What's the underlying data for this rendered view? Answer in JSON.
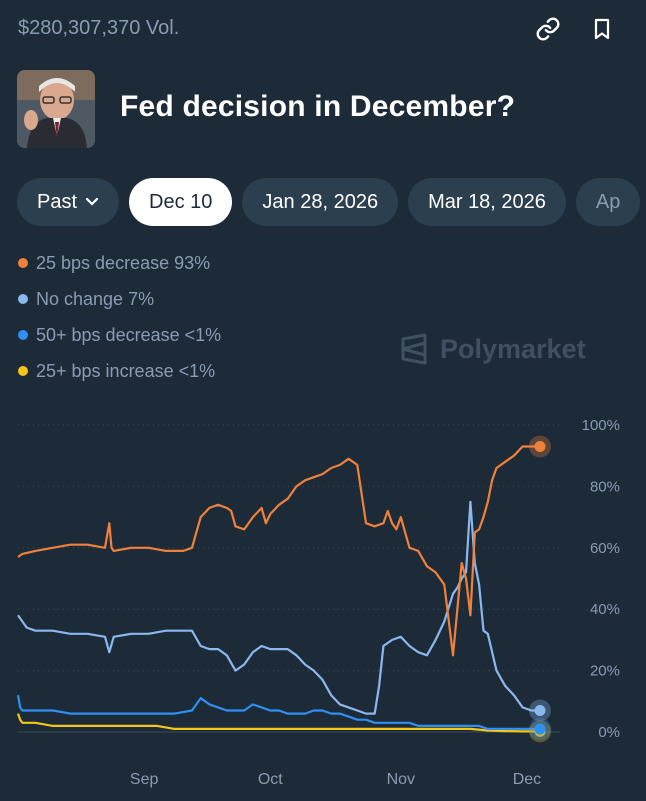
{
  "header": {
    "volume": "$280,307,370 Vol.",
    "title": "Fed decision in December?",
    "link_icon": "link-icon",
    "bookmark_icon": "bookmark-icon"
  },
  "tabs": [
    {
      "label": "Past",
      "has_chevron": true
    },
    {
      "label": "Dec 10",
      "active": true
    },
    {
      "label": "Jan 28, 2026"
    },
    {
      "label": "Mar 18, 2026"
    },
    {
      "label": "Ap"
    }
  ],
  "legend": [
    {
      "label": "25 bps decrease 93%",
      "color": "#f0813a"
    },
    {
      "label": "No change 7%",
      "color": "#8ab8ee"
    },
    {
      "label": "50+ bps decrease <1%",
      "color": "#2f8ff3"
    },
    {
      "label": "25+ bps increase <1%",
      "color": "#f5c518"
    }
  ],
  "watermark": "Polymarket",
  "chart_data": {
    "type": "line",
    "ylim": [
      0,
      100
    ],
    "x_range": [
      0,
      120
    ],
    "y_ticks": [
      {
        "v": 0,
        "label": "0%"
      },
      {
        "v": 20,
        "label": "20%"
      },
      {
        "v": 40,
        "label": "40%"
      },
      {
        "v": 60,
        "label": "60%"
      },
      {
        "v": 80,
        "label": "80%"
      },
      {
        "v": 100,
        "label": "100%"
      }
    ],
    "x_ticks": [
      {
        "v": 29,
        "label": "Sep"
      },
      {
        "v": 58,
        "label": "Oct"
      },
      {
        "v": 88,
        "label": "Nov"
      },
      {
        "v": 117,
        "label": "Dec"
      }
    ],
    "series": [
      {
        "name": "25 bps decrease",
        "color": "#f0813a",
        "x": [
          0,
          1,
          4,
          8,
          12,
          16,
          20,
          21,
          21.5,
          22,
          26,
          30,
          34,
          38,
          40,
          42,
          44,
          46,
          48,
          49,
          50,
          52,
          54,
          56,
          57,
          58,
          60,
          62,
          64,
          66,
          68,
          70,
          72,
          74,
          76,
          78,
          80,
          82,
          84,
          85,
          86,
          87,
          88,
          90,
          92,
          94,
          96,
          98,
          100,
          102,
          103,
          104,
          105,
          106,
          107,
          108,
          109,
          110,
          112,
          114,
          116,
          118,
          120
        ],
        "y": [
          57,
          58,
          59,
          60,
          61,
          61,
          60,
          68,
          60,
          59,
          60,
          60,
          59,
          59,
          60,
          70,
          73,
          74,
          73,
          72,
          67,
          66,
          70,
          73,
          68,
          71,
          74,
          76,
          80,
          82,
          83,
          84,
          86,
          87,
          89,
          87,
          68,
          67,
          68,
          72,
          68,
          66,
          70,
          60,
          59,
          54,
          52,
          48,
          25,
          55,
          50,
          38,
          65,
          66,
          70,
          75,
          82,
          86,
          88,
          90,
          93,
          93,
          93
        ]
      },
      {
        "name": "No change",
        "color": "#8ab8ee",
        "x": [
          0,
          1,
          2,
          4,
          8,
          12,
          16,
          20,
          21,
          22,
          26,
          30,
          34,
          38,
          40,
          42,
          44,
          46,
          48,
          50,
          52,
          54,
          56,
          58,
          60,
          62,
          64,
          66,
          68,
          70,
          72,
          74,
          76,
          78,
          80,
          82,
          83,
          84,
          86,
          88,
          90,
          92,
          94,
          96,
          98,
          100,
          101,
          102,
          103,
          104,
          105,
          106,
          107,
          108,
          110,
          112,
          114,
          116,
          118,
          120
        ],
        "y": [
          38,
          36,
          34,
          33,
          33,
          32,
          32,
          31,
          26,
          31,
          32,
          32,
          33,
          33,
          33,
          28,
          27,
          27,
          25,
          20,
          22,
          26,
          28,
          27,
          27,
          27,
          25,
          22,
          20,
          17,
          12,
          9,
          8,
          7,
          6,
          6,
          15,
          28,
          30,
          31,
          28,
          26,
          25,
          30,
          36,
          45,
          47,
          50,
          52,
          75,
          55,
          48,
          33,
          32,
          20,
          15,
          12,
          8,
          7,
          7
        ]
      },
      {
        "name": "50+ bps decrease",
        "color": "#2f8ff3",
        "x": [
          0,
          0.5,
          1,
          4,
          8,
          12,
          16,
          20,
          24,
          28,
          32,
          36,
          40,
          42,
          44,
          46,
          48,
          50,
          52,
          54,
          56,
          58,
          60,
          62,
          64,
          66,
          68,
          70,
          72,
          74,
          76,
          78,
          80,
          82,
          84,
          86,
          88,
          90,
          92,
          94,
          96,
          98,
          100,
          102,
          104,
          106,
          108,
          110,
          112,
          114,
          116,
          118,
          120
        ],
        "y": [
          12,
          8,
          7,
          7,
          7,
          6,
          6,
          6,
          6,
          6,
          6,
          6,
          7,
          11,
          9,
          8,
          7,
          7,
          7,
          9,
          8,
          7,
          7,
          6,
          6,
          6,
          7,
          7,
          6,
          6,
          5,
          4,
          4,
          3,
          3,
          3,
          3,
          3,
          2,
          2,
          2,
          2,
          2,
          2,
          2,
          2,
          1,
          1,
          1,
          1,
          1,
          1,
          1
        ]
      },
      {
        "name": "25+ bps increase",
        "color": "#f5c518",
        "x": [
          0,
          0.5,
          1,
          4,
          8,
          12,
          16,
          20,
          24,
          28,
          32,
          36,
          40,
          44,
          48,
          52,
          56,
          60,
          64,
          68,
          72,
          76,
          80,
          84,
          88,
          92,
          96,
          100,
          104,
          108,
          112,
          116,
          120
        ],
        "y": [
          6,
          4,
          3,
          3,
          2,
          2,
          2,
          2,
          2,
          2,
          2,
          1,
          1,
          1,
          1,
          1,
          1,
          1,
          1,
          1,
          1,
          1,
          1,
          1,
          1,
          1,
          1,
          1,
          1,
          0.5,
          0.3,
          0.2,
          0.2
        ]
      }
    ]
  }
}
